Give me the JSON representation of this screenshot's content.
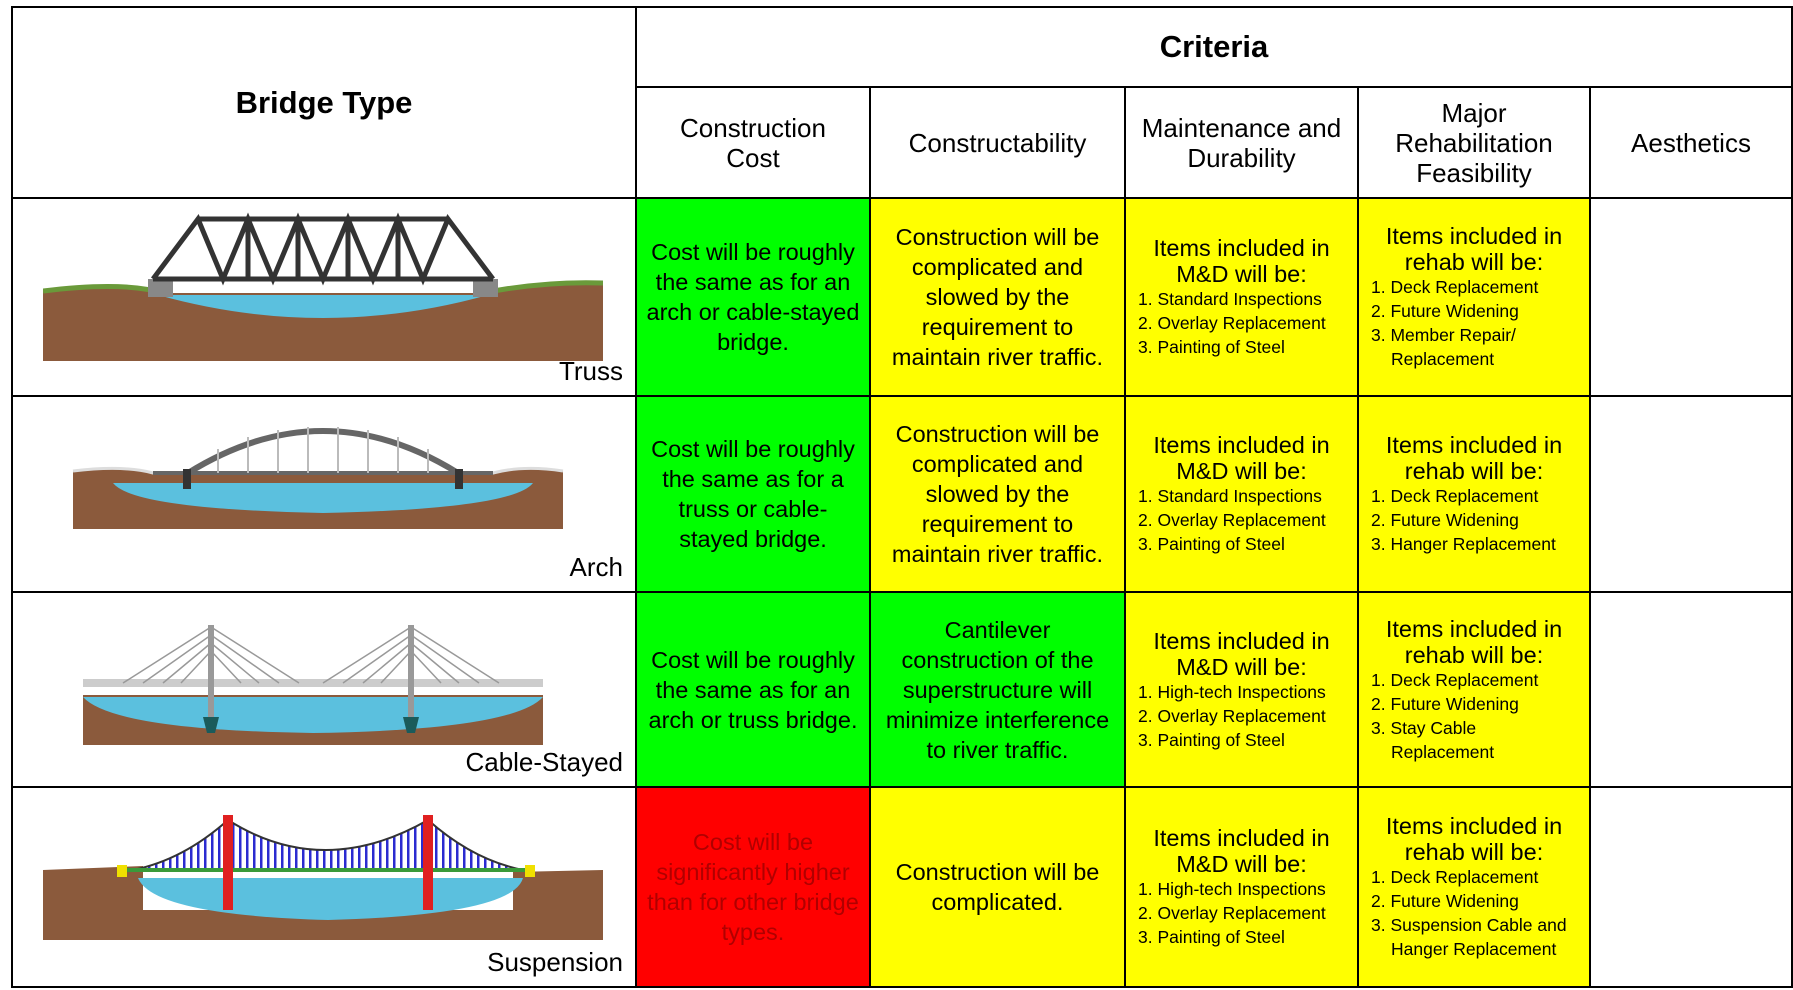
{
  "header": {
    "bridge_type": "Bridge Type",
    "criteria": "Criteria",
    "columns": [
      "Construction Cost",
      "Constructability",
      "Maintenance and Durability",
      "Major Rehabilitation Feasibility",
      "Aesthetics"
    ]
  },
  "rows": [
    {
      "bridge_type": "Truss",
      "cost": {
        "text": "Cost will be roughly the same as for an arch or cable-stayed bridge.",
        "color": "#00ff00"
      },
      "constructability": {
        "text": "Construction will be complicated and slowed by the requirement to maintain river traffic.",
        "color": "#ffff00"
      },
      "maintenance": {
        "intro": "Items included in M&D will be:",
        "items": [
          "1. Standard Inspections",
          "2. Overlay Replacement",
          "3. Painting of Steel"
        ],
        "color": "#ffff00"
      },
      "rehab": {
        "intro": "Items included in rehab will be:",
        "items": [
          "1. Deck Replacement",
          "2. Future Widening",
          "3. Member Repair/ Replacement"
        ],
        "color": "#ffff00"
      }
    },
    {
      "bridge_type": "Arch",
      "cost": {
        "text": "Cost will be roughly the same as for a truss or cable-stayed bridge.",
        "color": "#00ff00"
      },
      "constructability": {
        "text": "Construction will be complicated and slowed by the requirement to maintain river traffic.",
        "color": "#ffff00"
      },
      "maintenance": {
        "intro": "Items included in M&D will be:",
        "items": [
          "1. Standard Inspections",
          "2. Overlay Replacement",
          "3. Painting of Steel"
        ],
        "color": "#ffff00"
      },
      "rehab": {
        "intro": "Items included in rehab will be:",
        "items": [
          "1. Deck Replacement",
          "2. Future Widening",
          "3. Hanger Replacement"
        ],
        "color": "#ffff00"
      }
    },
    {
      "bridge_type": "Cable-Stayed",
      "cost": {
        "text": "Cost will be roughly the same as for an arch or truss bridge.",
        "color": "#00ff00"
      },
      "constructability": {
        "text": "Cantilever construction of the superstructure will minimize interference to river traffic.",
        "color": "#00ff00"
      },
      "maintenance": {
        "intro": "Items included in M&D will be:",
        "items": [
          "1. High-tech Inspections",
          "2. Overlay Replacement",
          "3. Painting of Steel"
        ],
        "color": "#ffff00"
      },
      "rehab": {
        "intro": "Items included in rehab will be:",
        "items": [
          "1. Deck Replacement",
          "2. Future Widening",
          "3. Stay Cable Replacement"
        ],
        "color": "#ffff00"
      }
    },
    {
      "bridge_type": "Suspension",
      "cost": {
        "text": "Cost will be significantly higher than for other bridge types.",
        "color": "#ff0000"
      },
      "constructability": {
        "text": "Construction will be complicated.",
        "color": "#ffff00"
      },
      "maintenance": {
        "intro": "Items included in M&D will be:",
        "items": [
          "1. High-tech Inspections",
          "2. Overlay Replacement",
          "3. Painting of Steel"
        ],
        "color": "#ffff00"
      },
      "rehab": {
        "intro": "Items included in rehab will be:",
        "items": [
          "1. Deck Replacement",
          "2. Future Widening",
          "3. Suspension Cable and Hanger Replacement"
        ],
        "color": "#ffff00"
      }
    }
  ]
}
